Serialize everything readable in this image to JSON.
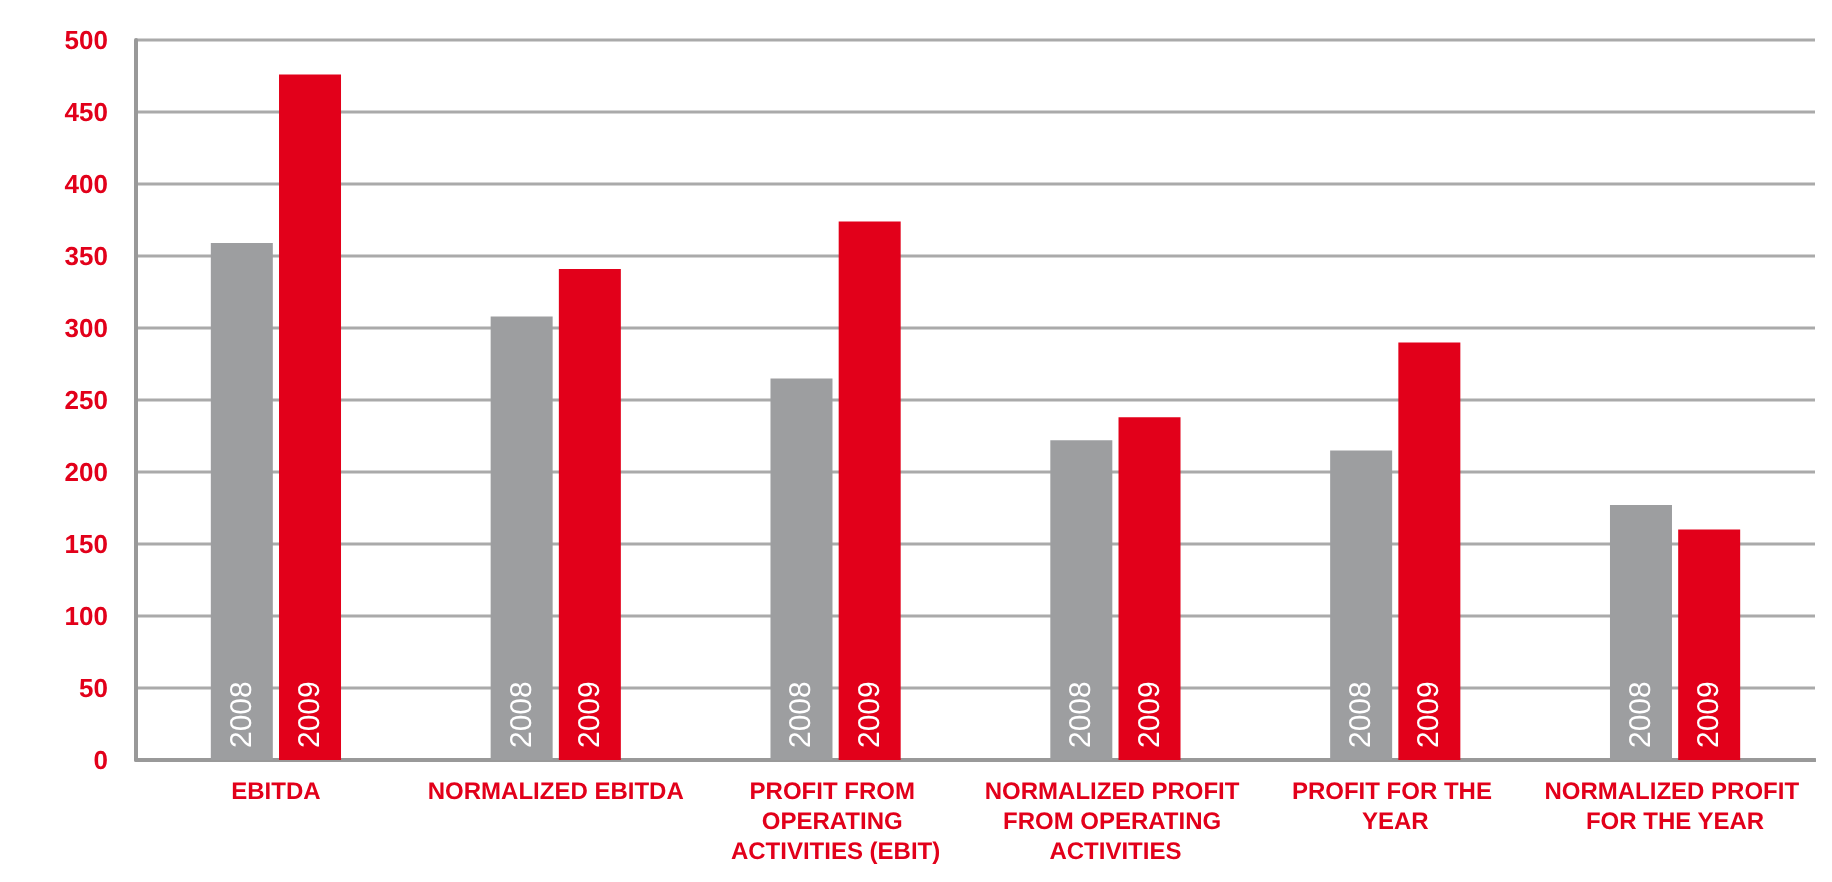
{
  "chart_data": {
    "type": "bar",
    "categories": [
      "EBITDA",
      "NORMALIZED EBITDA",
      "PROFIT FROM OPERATING ACTIVITIES (EBIT)",
      "NORMALIZED PROFIT FROM OPERATING ACTIVITIES",
      "PROFIT FOR THE YEAR",
      "NORMALIZED PROFIT FOR THE YEAR"
    ],
    "series": [
      {
        "name": "2008",
        "color": "#9d9ea0",
        "values": [
          359,
          308,
          265,
          222,
          215,
          177
        ]
      },
      {
        "name": "2009",
        "color": "#e2001a",
        "values": [
          476,
          341,
          374,
          238,
          290,
          160
        ]
      }
    ],
    "ylim": [
      0,
      500
    ],
    "yticks": [
      0,
      50,
      100,
      150,
      200,
      250,
      300,
      350,
      400,
      450,
      500
    ],
    "grid": "y",
    "legend": false
  }
}
